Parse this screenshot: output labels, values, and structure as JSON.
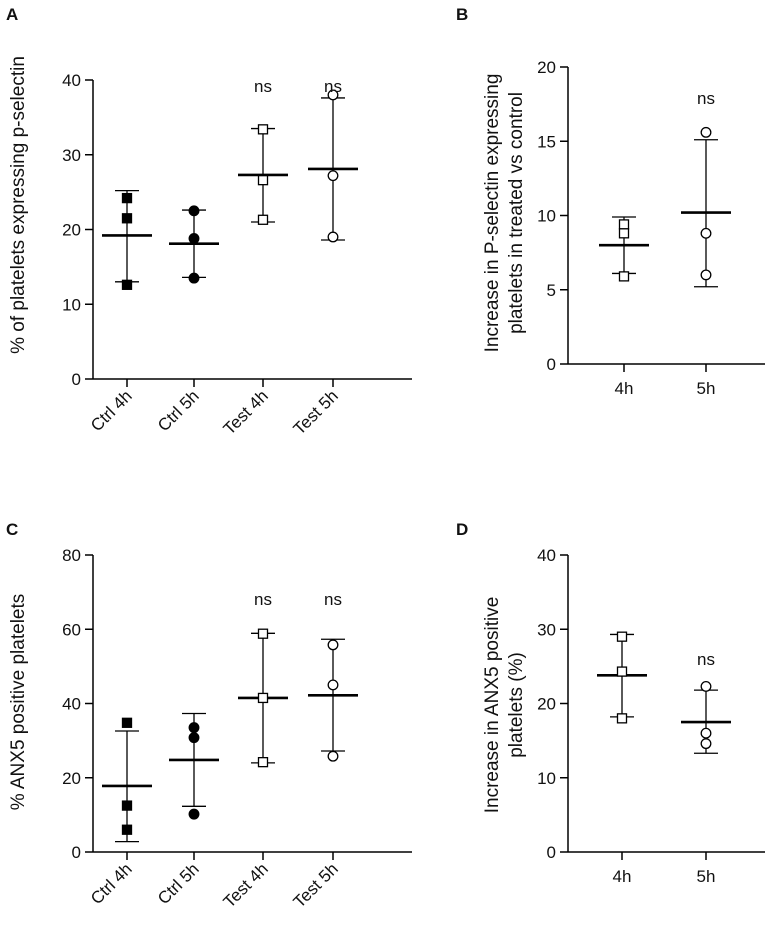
{
  "chart_data": [
    {
      "panel": "A",
      "type": "scatter",
      "ylabel": "% of platelets expressing p-selectin",
      "ylim": [
        0,
        40
      ],
      "yticks": [
        "0",
        "10",
        "20",
        "30",
        "40"
      ],
      "categories": [
        "Ctrl 4h",
        "Ctrl 5h",
        "Test 4h",
        "Test 5h"
      ],
      "groups": [
        {
          "label": "Ctrl 4h",
          "marker": "square-filled",
          "points": [
            24.2,
            21.5,
            12.6
          ],
          "mean": 19.2,
          "err_low": 13.0,
          "err_high": 25.2,
          "annotation": ""
        },
        {
          "label": "Ctrl 5h",
          "marker": "circle-filled",
          "points": [
            22.5,
            18.8,
            13.5
          ],
          "mean": 18.1,
          "err_low": 13.6,
          "err_high": 22.6,
          "annotation": ""
        },
        {
          "label": "Test 4h",
          "marker": "square-open",
          "points": [
            33.4,
            26.6,
            21.3
          ],
          "mean": 27.3,
          "err_low": 21.0,
          "err_high": 33.5,
          "annotation": "ns"
        },
        {
          "label": "Test 5h",
          "marker": "circle-open",
          "points": [
            38.0,
            27.2,
            19.0
          ],
          "mean": 28.1,
          "err_low": 18.6,
          "err_high": 37.6,
          "annotation": "ns"
        }
      ]
    },
    {
      "panel": "B",
      "type": "scatter",
      "ylabel": "Increase in P-selectin expressing platelets in treated vs control",
      "ylabel_lines": [
        "Increase in P-selectin expressing",
        "platelets in treated vs control"
      ],
      "ylim": [
        0,
        20
      ],
      "yticks": [
        "0",
        "5",
        "10",
        "15",
        "20"
      ],
      "categories": [
        "4h",
        "5h"
      ],
      "groups": [
        {
          "label": "4h",
          "marker": "square-open",
          "points": [
            9.4,
            8.8,
            5.9
          ],
          "mean": 8.0,
          "err_low": 6.1,
          "err_high": 9.9,
          "annotation": ""
        },
        {
          "label": "5h",
          "marker": "circle-open",
          "points": [
            15.6,
            8.8,
            6.0
          ],
          "mean": 10.2,
          "err_low": 5.2,
          "err_high": 15.1,
          "annotation": "ns"
        }
      ]
    },
    {
      "panel": "C",
      "type": "scatter",
      "ylabel": "% ANX5 positive platelets",
      "ylim": [
        0,
        80
      ],
      "yticks": [
        "0",
        "20",
        "40",
        "60",
        "80"
      ],
      "categories": [
        "Ctrl 4h",
        "Ctrl 5h",
        "Test 4h",
        "Test 5h"
      ],
      "groups": [
        {
          "label": "Ctrl 4h",
          "marker": "square-filled",
          "points": [
            34.8,
            12.5,
            6.0
          ],
          "mean": 17.8,
          "err_low": 2.8,
          "err_high": 32.6,
          "annotation": ""
        },
        {
          "label": "Ctrl 5h",
          "marker": "circle-filled",
          "points": [
            33.5,
            30.8,
            10.2
          ],
          "mean": 24.8,
          "err_low": 12.3,
          "err_high": 37.3,
          "annotation": ""
        },
        {
          "label": "Test 4h",
          "marker": "square-open",
          "points": [
            58.8,
            41.5,
            24.2
          ],
          "mean": 41.5,
          "err_low": 24.0,
          "err_high": 58.9,
          "annotation": "ns"
        },
        {
          "label": "Test 5h",
          "marker": "circle-open",
          "points": [
            55.8,
            45.0,
            25.8
          ],
          "mean": 42.2,
          "err_low": 27.2,
          "err_high": 57.3,
          "annotation": "ns"
        }
      ]
    },
    {
      "panel": "D",
      "type": "scatter",
      "ylabel": "Increase in ANX5 positive platelets (%)",
      "ylabel_lines": [
        "Increase in ANX5 positive",
        "platelets  (%)"
      ],
      "ylim": [
        0,
        40
      ],
      "yticks": [
        "0",
        "10",
        "20",
        "30",
        "40"
      ],
      "categories": [
        "4h",
        "5h"
      ],
      "groups": [
        {
          "label": "4h",
          "marker": "square-open",
          "points": [
            29.0,
            24.3,
            18.0
          ],
          "mean": 23.8,
          "err_low": 18.2,
          "err_high": 29.3,
          "annotation": ""
        },
        {
          "label": "5h",
          "marker": "circle-open",
          "points": [
            22.3,
            16.0,
            14.6
          ],
          "mean": 17.5,
          "err_low": 13.3,
          "err_high": 21.8,
          "annotation": "ns"
        }
      ]
    }
  ]
}
